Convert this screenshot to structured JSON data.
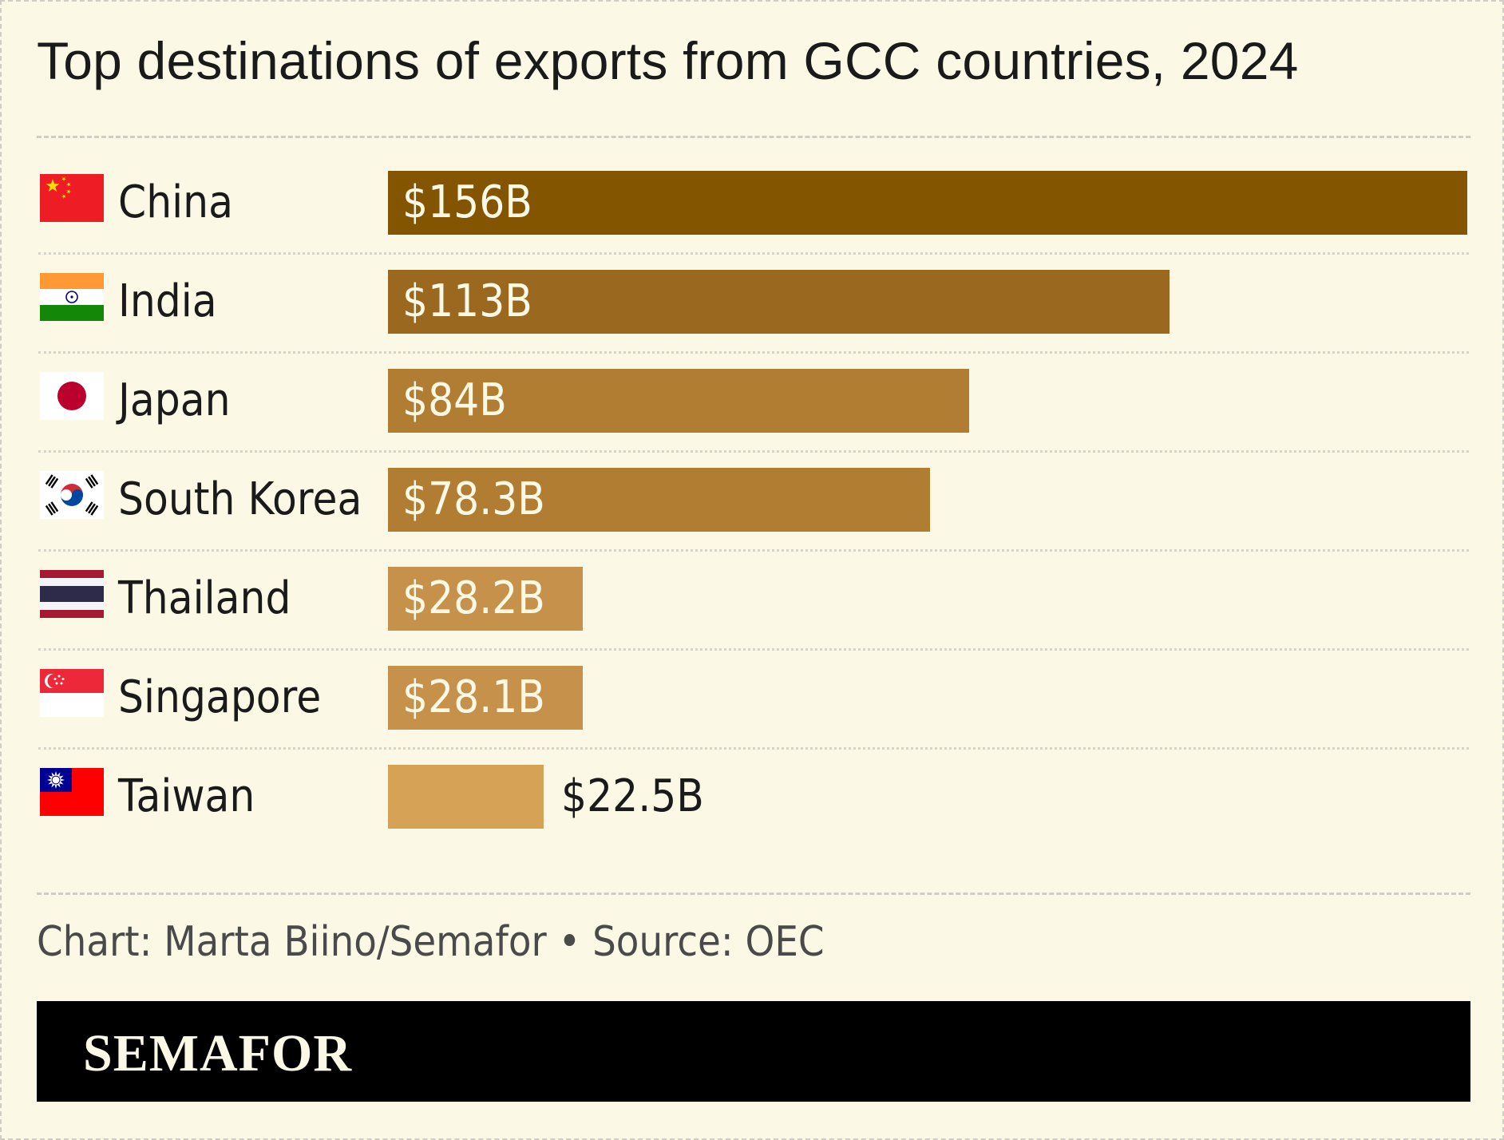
{
  "title": "Top destinations of exports from GCC countries, 2024",
  "source": "Chart: Marta Biino/Semafor • Source: OEC",
  "brand": "SEMAFOR",
  "chart_data": {
    "type": "bar",
    "orientation": "horizontal",
    "title": "Top destinations of exports from GCC countries, 2024",
    "categories": [
      "China",
      "India",
      "Japan",
      "South Korea",
      "Thailand",
      "Singapore",
      "Taiwan"
    ],
    "values": [
      156,
      113,
      84,
      78.3,
      28.2,
      28.1,
      22.5
    ],
    "value_labels": [
      "$156B",
      "$113B",
      "$84B",
      "$78.3B",
      "$28.2B",
      "$28.1B",
      "$22.5B"
    ],
    "flag_icons": [
      "china-flag-icon",
      "india-flag-icon",
      "japan-flag-icon",
      "south-korea-flag-icon",
      "thailand-flag-icon",
      "singapore-flag-icon",
      "taiwan-flag-icon"
    ],
    "colors": [
      "#845500",
      "#9a691f",
      "#b07d33",
      "#b07d33",
      "#c6914a",
      "#c6914a",
      "#d6a255"
    ],
    "xlim": [
      0,
      156
    ],
    "grid": false,
    "legend": "none"
  }
}
